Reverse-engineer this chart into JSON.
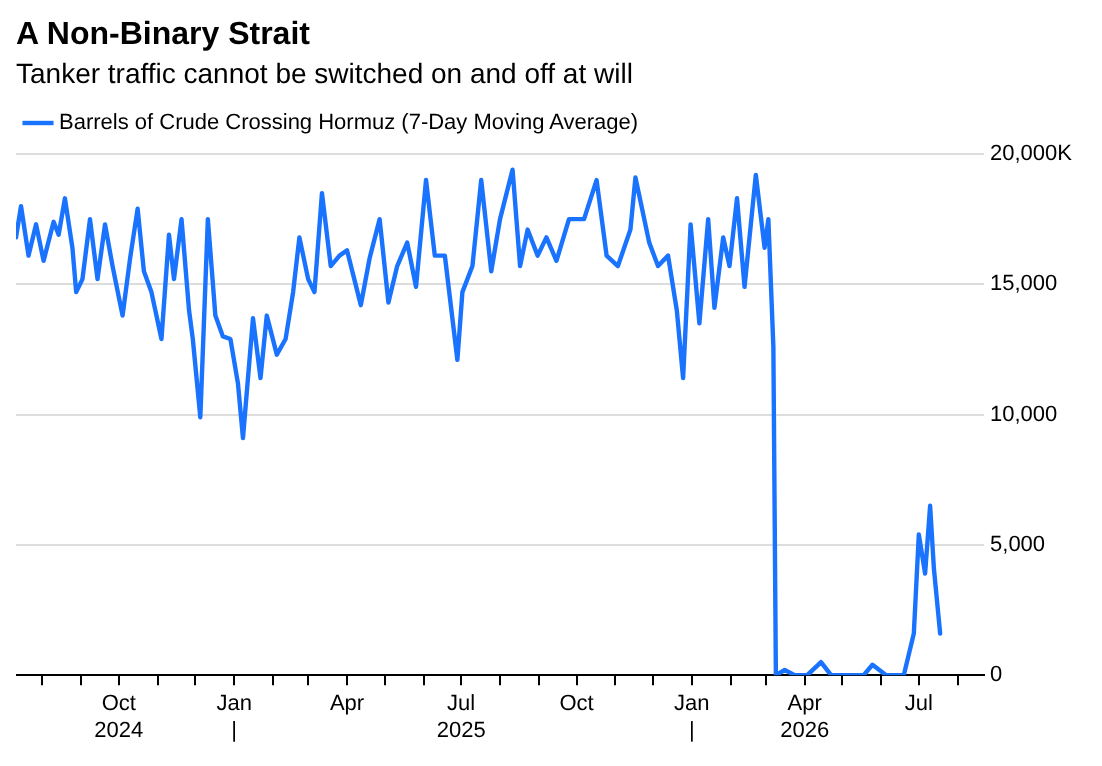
{
  "chart_data": {
    "type": "line",
    "title": "A Non-Binary Strait",
    "subtitle": "Tanker traffic cannot be switched on and off at will",
    "x": [
      "2024-07-11",
      "2024-07-15",
      "2024-07-21",
      "2024-07-27",
      "2024-08-02",
      "2024-08-10",
      "2024-08-14",
      "2024-08-19",
      "2024-08-25",
      "2024-08-28",
      "2024-09-02",
      "2024-09-08",
      "2024-09-14",
      "2024-09-20",
      "2024-09-26",
      "2024-10-04",
      "2024-10-10",
      "2024-10-16",
      "2024-10-21",
      "2024-10-27",
      "2024-11-04",
      "2024-11-10",
      "2024-11-14",
      "2024-11-20",
      "2024-11-26",
      "2024-11-29",
      "2024-12-05",
      "2024-12-11",
      "2024-12-17",
      "2024-12-23",
      "2024-12-29",
      "2025-01-04",
      "2025-01-08",
      "2025-01-16",
      "2025-01-22",
      "2025-01-27",
      "2025-02-04",
      "2025-02-11",
      "2025-02-17",
      "2025-02-22",
      "2025-03-01",
      "2025-03-06",
      "2025-03-12",
      "2025-03-19",
      "2025-03-26",
      "2025-04-01",
      "2025-04-12",
      "2025-04-19",
      "2025-04-27",
      "2025-05-04",
      "2025-05-11",
      "2025-05-19",
      "2025-05-26",
      "2025-06-03",
      "2025-06-10",
      "2025-06-18",
      "2025-06-28",
      "2025-07-02",
      "2025-07-10",
      "2025-07-17",
      "2025-07-25",
      "2025-08-01",
      "2025-08-11",
      "2025-08-17",
      "2025-08-23",
      "2025-08-31",
      "2025-09-07",
      "2025-09-15",
      "2025-09-25",
      "2025-10-07",
      "2025-10-17",
      "2025-10-25",
      "2025-11-03",
      "2025-11-13",
      "2025-11-17",
      "2025-11-28",
      "2025-12-05",
      "2025-12-13",
      "2025-12-20",
      "2025-12-25",
      "2025-12-31",
      "2026-01-07",
      "2026-01-14",
      "2026-01-19",
      "2026-01-26",
      "2026-01-31",
      "2026-02-06",
      "2026-02-12",
      "2026-02-21",
      "2026-02-28",
      "2026-03-03",
      "2026-03-07",
      "2026-03-09",
      "2026-03-16",
      "2026-03-24",
      "2026-04-03",
      "2026-04-14",
      "2026-04-22",
      "2026-05-03",
      "2026-05-18",
      "2026-05-25",
      "2026-06-05",
      "2026-06-19",
      "2026-06-27",
      "2026-07-01",
      "2026-07-06",
      "2026-07-10",
      "2026-07-13",
      "2026-07-18"
    ],
    "series": [
      {
        "name": "Barrels of Crude Crossing Hormuz (7-Day Moving Average)",
        "color": "#1a73ff",
        "values": [
          16800,
          18000,
          16100,
          17300,
          15900,
          17400,
          16900,
          18300,
          16400,
          14700,
          15200,
          17500,
          15200,
          17300,
          15700,
          13800,
          16000,
          17900,
          15500,
          14700,
          12900,
          16900,
          15200,
          17500,
          14000,
          12900,
          9900,
          17500,
          13800,
          13000,
          12900,
          11200,
          9100,
          13700,
          11400,
          13800,
          12300,
          12900,
          14700,
          16800,
          15200,
          14700,
          18500,
          15700,
          16100,
          16300,
          14200,
          16000,
          17500,
          14300,
          15700,
          16600,
          14900,
          19000,
          16100,
          16100,
          12100,
          14700,
          15700,
          19000,
          15500,
          17500,
          19400,
          15700,
          17100,
          16100,
          16800,
          15900,
          17500,
          17500,
          19000,
          16100,
          15700,
          17100,
          19100,
          16600,
          15700,
          16100,
          14000,
          11400,
          17300,
          13500,
          17500,
          14100,
          16800,
          15700,
          18300,
          14900,
          19200,
          16400,
          17500,
          12600,
          0,
          200,
          0,
          0,
          500,
          0,
          0,
          0,
          400,
          0,
          0,
          1600,
          5400,
          3900,
          6500,
          4100,
          1600
        ]
      }
    ],
    "xlim": [
      "2024-07-11",
      "2026-08-22"
    ],
    "xticks": [
      {
        "value": "2024-08-01",
        "label": null
      },
      {
        "value": "2024-09-01",
        "label": null
      },
      {
        "value": "2024-10-01",
        "label": "Oct\n2024"
      },
      {
        "value": "2024-11-01",
        "label": null
      },
      {
        "value": "2024-12-01",
        "label": null
      },
      {
        "value": "2025-01-01",
        "label": "Jan\n|"
      },
      {
        "value": "2025-02-01",
        "label": null
      },
      {
        "value": "2025-03-01",
        "label": null
      },
      {
        "value": "2025-04-01",
        "label": "Apr"
      },
      {
        "value": "2025-05-01",
        "label": null
      },
      {
        "value": "2025-06-01",
        "label": null
      },
      {
        "value": "2025-07-01",
        "label": "Jul\n2025"
      },
      {
        "value": "2025-08-01",
        "label": null
      },
      {
        "value": "2025-09-01",
        "label": null
      },
      {
        "value": "2025-10-01",
        "label": "Oct"
      },
      {
        "value": "2025-11-01",
        "label": null
      },
      {
        "value": "2025-12-01",
        "label": null
      },
      {
        "value": "2026-01-01",
        "label": "Jan\n|"
      },
      {
        "value": "2026-02-01",
        "label": null
      },
      {
        "value": "2026-03-01",
        "label": null
      },
      {
        "value": "2026-04-01",
        "label": "Apr\n2026"
      },
      {
        "value": "2026-05-01",
        "label": null
      },
      {
        "value": "2026-06-01",
        "label": null
      },
      {
        "value": "2026-07-01",
        "label": "Jul"
      },
      {
        "value": "2026-08-01",
        "label": null
      }
    ],
    "ylim": [
      0,
      20000
    ],
    "yticks": [
      {
        "value": 0,
        "label": "0"
      },
      {
        "value": 5000,
        "label": "5,000"
      },
      {
        "value": 10000,
        "label": "10,000"
      },
      {
        "value": 15000,
        "label": "15,000"
      },
      {
        "value": 20000,
        "label": "20,000K"
      }
    ],
    "grid": "y",
    "legend": "top left",
    "marker": "none",
    "line_style": "solid"
  }
}
